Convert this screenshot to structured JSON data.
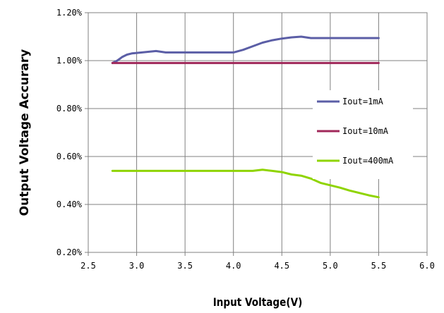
{
  "chart_data": {
    "type": "line",
    "xlabel": "Input Voltage(V)",
    "ylabel": "Output Voltage Accurary",
    "xlim": [
      2.5,
      6.0
    ],
    "ylim": [
      0.2,
      1.2
    ],
    "x_ticks": [
      {
        "value": 2.5,
        "label": "2.5"
      },
      {
        "value": 3.0,
        "label": "3.0"
      },
      {
        "value": 3.5,
        "label": "3.5"
      },
      {
        "value": 4.0,
        "label": "4.0"
      },
      {
        "value": 4.5,
        "label": "4.5"
      },
      {
        "value": 5.0,
        "label": "5.0"
      },
      {
        "value": 5.5,
        "label": "5.5"
      },
      {
        "value": 6.0,
        "label": "6.0"
      }
    ],
    "y_ticks": [
      {
        "value": 0.2,
        "label": "0.20%"
      },
      {
        "value": 0.4,
        "label": "0.40%"
      },
      {
        "value": 0.6,
        "label": "0.60%"
      },
      {
        "value": 0.8,
        "label": "0.80%"
      },
      {
        "value": 1.0,
        "label": "1.00%"
      },
      {
        "value": 1.2,
        "label": "1.20%"
      }
    ],
    "grid": true,
    "legend_position": "right",
    "series": [
      {
        "name": "Iout=1mA",
        "color": "#5b5ea6",
        "x": [
          2.75,
          2.8,
          2.85,
          2.9,
          2.95,
          3.0,
          3.1,
          3.2,
          3.3,
          3.5,
          3.8,
          4.0,
          4.1,
          4.2,
          4.3,
          4.4,
          4.5,
          4.6,
          4.7,
          4.8,
          5.0,
          5.2,
          5.5
        ],
        "y": [
          0.99,
          1.0,
          1.015,
          1.025,
          1.03,
          1.032,
          1.036,
          1.04,
          1.034,
          1.034,
          1.034,
          1.034,
          1.045,
          1.06,
          1.075,
          1.085,
          1.092,
          1.097,
          1.1,
          1.094,
          1.094,
          1.094,
          1.094
        ]
      },
      {
        "name": "Iout=10mA",
        "color": "#a0285a",
        "x": [
          2.75,
          5.5
        ],
        "y": [
          0.99,
          0.99
        ]
      },
      {
        "name": "Iout=400mA",
        "color": "#8fd400",
        "x": [
          2.75,
          3.0,
          3.5,
          4.0,
          4.2,
          4.3,
          4.4,
          4.5,
          4.6,
          4.7,
          4.8,
          4.9,
          5.0,
          5.1,
          5.2,
          5.3,
          5.4,
          5.5
        ],
        "y": [
          0.54,
          0.54,
          0.54,
          0.54,
          0.54,
          0.545,
          0.54,
          0.535,
          0.525,
          0.52,
          0.508,
          0.49,
          0.48,
          0.47,
          0.458,
          0.448,
          0.438,
          0.43
        ]
      }
    ]
  }
}
